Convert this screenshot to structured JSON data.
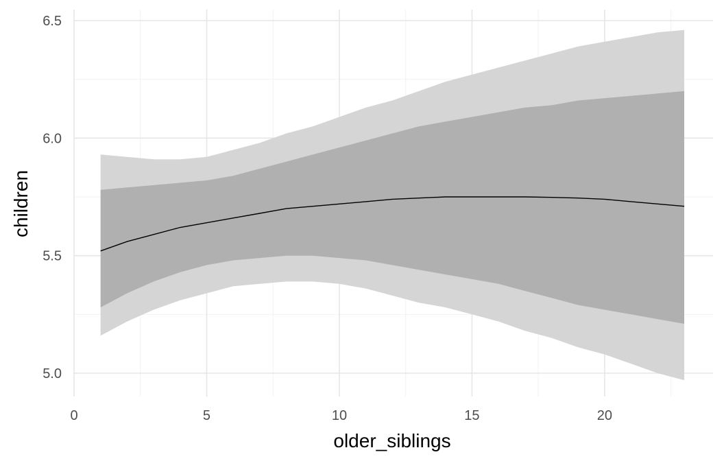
{
  "chart_data": {
    "type": "area",
    "title": "",
    "xlabel": "older_siblings",
    "ylabel": "children",
    "xlim": [
      0,
      24
    ],
    "ylim": [
      4.9,
      6.55
    ],
    "x_ticks": [
      0,
      5,
      10,
      15,
      20
    ],
    "x_tick_labels": [
      "0",
      "5",
      "10",
      "15",
      "20"
    ],
    "x_minor_ticks": [
      2.5,
      7.5,
      12.5,
      17.5,
      22.5
    ],
    "y_ticks": [
      5.0,
      5.5,
      6.0,
      6.5
    ],
    "y_tick_labels": [
      "5.0",
      "5.5",
      "6.0",
      "6.5"
    ],
    "y_minor_ticks": [
      5.25,
      5.75,
      6.25
    ],
    "grid": true,
    "legend": "none",
    "colors": {
      "outer_band": "#d5d5d5",
      "inner_band": "#b0b0b0",
      "line": "#000000",
      "grid_major": "#e6e6e6",
      "grid_minor": "#f2f2f2"
    },
    "x": [
      1,
      2,
      3,
      4,
      5,
      6,
      7,
      8,
      9,
      10,
      11,
      12,
      13,
      14,
      15,
      16,
      17,
      18,
      19,
      20,
      21,
      22,
      23
    ],
    "series": [
      {
        "role": "outer_band",
        "lower": [
          5.16,
          5.22,
          5.27,
          5.31,
          5.34,
          5.37,
          5.38,
          5.39,
          5.39,
          5.38,
          5.36,
          5.33,
          5.3,
          5.28,
          5.25,
          5.22,
          5.18,
          5.15,
          5.11,
          5.08,
          5.04,
          5.0,
          4.97
        ],
        "upper": [
          5.93,
          5.92,
          5.91,
          5.91,
          5.92,
          5.95,
          5.98,
          6.02,
          6.05,
          6.09,
          6.13,
          6.16,
          6.2,
          6.24,
          6.27,
          6.3,
          6.33,
          6.36,
          6.39,
          6.41,
          6.43,
          6.45,
          6.46
        ]
      },
      {
        "role": "inner_band",
        "lower": [
          5.28,
          5.34,
          5.39,
          5.43,
          5.46,
          5.48,
          5.49,
          5.5,
          5.5,
          5.49,
          5.48,
          5.46,
          5.44,
          5.42,
          5.4,
          5.38,
          5.35,
          5.32,
          5.29,
          5.27,
          5.25,
          5.23,
          5.21
        ],
        "upper": [
          5.78,
          5.79,
          5.8,
          5.81,
          5.82,
          5.84,
          5.87,
          5.9,
          5.93,
          5.96,
          5.99,
          6.02,
          6.05,
          6.07,
          6.09,
          6.11,
          6.13,
          6.14,
          6.16,
          6.17,
          6.18,
          6.19,
          6.2
        ]
      },
      {
        "role": "line",
        "values": [
          5.52,
          5.56,
          5.59,
          5.62,
          5.64,
          5.66,
          5.68,
          5.7,
          5.71,
          5.72,
          5.73,
          5.74,
          5.745,
          5.75,
          5.75,
          5.75,
          5.75,
          5.748,
          5.745,
          5.74,
          5.73,
          5.72,
          5.71
        ]
      }
    ]
  }
}
